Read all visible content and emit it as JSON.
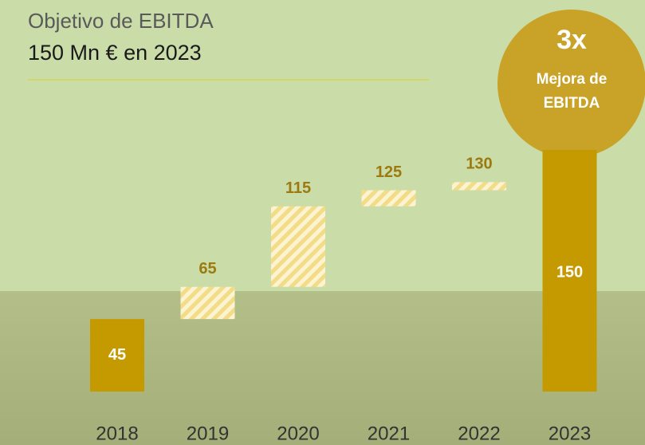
{
  "chart_data": {
    "type": "waterfall",
    "title": "Objetivo de EBITDA",
    "subtitle": "150 Mn € en 2023",
    "badge": {
      "headline": "3x",
      "text_lines": [
        "Mejora de",
        "EBITDA"
      ]
    },
    "categories": [
      "2018",
      "2019",
      "2020",
      "2021",
      "2022",
      "2023"
    ],
    "values": [
      45,
      65,
      115,
      125,
      130,
      150
    ],
    "color": "#c49a00",
    "label_color": "#9c7a10"
  }
}
